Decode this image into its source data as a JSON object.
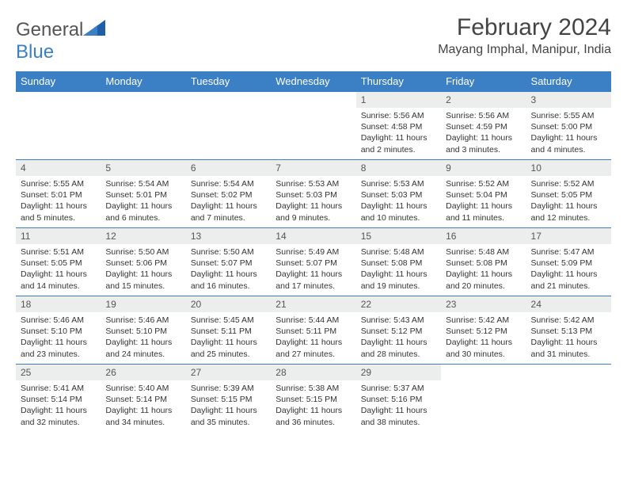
{
  "brand": {
    "name_a": "General",
    "name_b": "Blue"
  },
  "title": "February 2024",
  "location": "Mayang Imphal, Manipur, India",
  "colors": {
    "header_bg": "#3b7fc4",
    "header_text": "#ffffff",
    "daynum_bg": "#eceded",
    "text": "#333333",
    "row_border": "#3b7fc4"
  },
  "day_headers": [
    "Sunday",
    "Monday",
    "Tuesday",
    "Wednesday",
    "Thursday",
    "Friday",
    "Saturday"
  ],
  "weeks": [
    [
      {
        "n": "",
        "sr": "",
        "ss": "",
        "dl": ""
      },
      {
        "n": "",
        "sr": "",
        "ss": "",
        "dl": ""
      },
      {
        "n": "",
        "sr": "",
        "ss": "",
        "dl": ""
      },
      {
        "n": "",
        "sr": "",
        "ss": "",
        "dl": ""
      },
      {
        "n": "1",
        "sr": "Sunrise: 5:56 AM",
        "ss": "Sunset: 4:58 PM",
        "dl": "Daylight: 11 hours and 2 minutes."
      },
      {
        "n": "2",
        "sr": "Sunrise: 5:56 AM",
        "ss": "Sunset: 4:59 PM",
        "dl": "Daylight: 11 hours and 3 minutes."
      },
      {
        "n": "3",
        "sr": "Sunrise: 5:55 AM",
        "ss": "Sunset: 5:00 PM",
        "dl": "Daylight: 11 hours and 4 minutes."
      }
    ],
    [
      {
        "n": "4",
        "sr": "Sunrise: 5:55 AM",
        "ss": "Sunset: 5:01 PM",
        "dl": "Daylight: 11 hours and 5 minutes."
      },
      {
        "n": "5",
        "sr": "Sunrise: 5:54 AM",
        "ss": "Sunset: 5:01 PM",
        "dl": "Daylight: 11 hours and 6 minutes."
      },
      {
        "n": "6",
        "sr": "Sunrise: 5:54 AM",
        "ss": "Sunset: 5:02 PM",
        "dl": "Daylight: 11 hours and 7 minutes."
      },
      {
        "n": "7",
        "sr": "Sunrise: 5:53 AM",
        "ss": "Sunset: 5:03 PM",
        "dl": "Daylight: 11 hours and 9 minutes."
      },
      {
        "n": "8",
        "sr": "Sunrise: 5:53 AM",
        "ss": "Sunset: 5:03 PM",
        "dl": "Daylight: 11 hours and 10 minutes."
      },
      {
        "n": "9",
        "sr": "Sunrise: 5:52 AM",
        "ss": "Sunset: 5:04 PM",
        "dl": "Daylight: 11 hours and 11 minutes."
      },
      {
        "n": "10",
        "sr": "Sunrise: 5:52 AM",
        "ss": "Sunset: 5:05 PM",
        "dl": "Daylight: 11 hours and 12 minutes."
      }
    ],
    [
      {
        "n": "11",
        "sr": "Sunrise: 5:51 AM",
        "ss": "Sunset: 5:05 PM",
        "dl": "Daylight: 11 hours and 14 minutes."
      },
      {
        "n": "12",
        "sr": "Sunrise: 5:50 AM",
        "ss": "Sunset: 5:06 PM",
        "dl": "Daylight: 11 hours and 15 minutes."
      },
      {
        "n": "13",
        "sr": "Sunrise: 5:50 AM",
        "ss": "Sunset: 5:07 PM",
        "dl": "Daylight: 11 hours and 16 minutes."
      },
      {
        "n": "14",
        "sr": "Sunrise: 5:49 AM",
        "ss": "Sunset: 5:07 PM",
        "dl": "Daylight: 11 hours and 17 minutes."
      },
      {
        "n": "15",
        "sr": "Sunrise: 5:48 AM",
        "ss": "Sunset: 5:08 PM",
        "dl": "Daylight: 11 hours and 19 minutes."
      },
      {
        "n": "16",
        "sr": "Sunrise: 5:48 AM",
        "ss": "Sunset: 5:08 PM",
        "dl": "Daylight: 11 hours and 20 minutes."
      },
      {
        "n": "17",
        "sr": "Sunrise: 5:47 AM",
        "ss": "Sunset: 5:09 PM",
        "dl": "Daylight: 11 hours and 21 minutes."
      }
    ],
    [
      {
        "n": "18",
        "sr": "Sunrise: 5:46 AM",
        "ss": "Sunset: 5:10 PM",
        "dl": "Daylight: 11 hours and 23 minutes."
      },
      {
        "n": "19",
        "sr": "Sunrise: 5:46 AM",
        "ss": "Sunset: 5:10 PM",
        "dl": "Daylight: 11 hours and 24 minutes."
      },
      {
        "n": "20",
        "sr": "Sunrise: 5:45 AM",
        "ss": "Sunset: 5:11 PM",
        "dl": "Daylight: 11 hours and 25 minutes."
      },
      {
        "n": "21",
        "sr": "Sunrise: 5:44 AM",
        "ss": "Sunset: 5:11 PM",
        "dl": "Daylight: 11 hours and 27 minutes."
      },
      {
        "n": "22",
        "sr": "Sunrise: 5:43 AM",
        "ss": "Sunset: 5:12 PM",
        "dl": "Daylight: 11 hours and 28 minutes."
      },
      {
        "n": "23",
        "sr": "Sunrise: 5:42 AM",
        "ss": "Sunset: 5:12 PM",
        "dl": "Daylight: 11 hours and 30 minutes."
      },
      {
        "n": "24",
        "sr": "Sunrise: 5:42 AM",
        "ss": "Sunset: 5:13 PM",
        "dl": "Daylight: 11 hours and 31 minutes."
      }
    ],
    [
      {
        "n": "25",
        "sr": "Sunrise: 5:41 AM",
        "ss": "Sunset: 5:14 PM",
        "dl": "Daylight: 11 hours and 32 minutes."
      },
      {
        "n": "26",
        "sr": "Sunrise: 5:40 AM",
        "ss": "Sunset: 5:14 PM",
        "dl": "Daylight: 11 hours and 34 minutes."
      },
      {
        "n": "27",
        "sr": "Sunrise: 5:39 AM",
        "ss": "Sunset: 5:15 PM",
        "dl": "Daylight: 11 hours and 35 minutes."
      },
      {
        "n": "28",
        "sr": "Sunrise: 5:38 AM",
        "ss": "Sunset: 5:15 PM",
        "dl": "Daylight: 11 hours and 36 minutes."
      },
      {
        "n": "29",
        "sr": "Sunrise: 5:37 AM",
        "ss": "Sunset: 5:16 PM",
        "dl": "Daylight: 11 hours and 38 minutes."
      },
      {
        "n": "",
        "sr": "",
        "ss": "",
        "dl": ""
      },
      {
        "n": "",
        "sr": "",
        "ss": "",
        "dl": ""
      }
    ]
  ]
}
